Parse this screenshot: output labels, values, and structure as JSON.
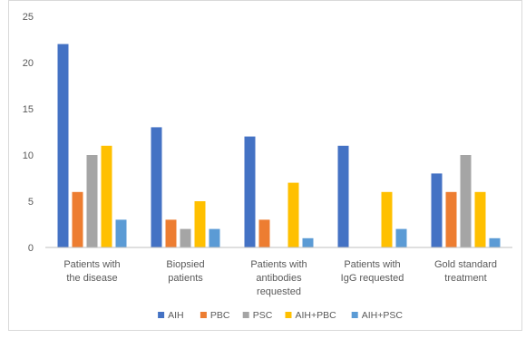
{
  "chart_data": {
    "type": "bar",
    "categories": [
      [
        "Patients with",
        "the disease"
      ],
      [
        "Biopsied",
        "patients"
      ],
      [
        "Patients with",
        "antibodies",
        "requested"
      ],
      [
        "Patients with",
        "IgG requested"
      ],
      [
        "Gold standard",
        "treatment"
      ]
    ],
    "series": [
      {
        "name": "AIH",
        "color": "#4472C4",
        "values": [
          22,
          13,
          12,
          11,
          8
        ]
      },
      {
        "name": "PBC",
        "color": "#ED7D31",
        "values": [
          6,
          3,
          3,
          0,
          6
        ]
      },
      {
        "name": "PSC",
        "color": "#A5A5A5",
        "values": [
          10,
          2,
          0,
          0,
          10
        ]
      },
      {
        "name": "AIH+PBC",
        "color": "#FFC000",
        "values": [
          11,
          5,
          7,
          6,
          6
        ]
      },
      {
        "name": "AIH+PSC",
        "color": "#5B9BD5",
        "values": [
          3,
          2,
          1,
          2,
          1
        ]
      }
    ],
    "ylim": [
      0,
      25
    ],
    "yticks": [
      0,
      5,
      10,
      15,
      20,
      25
    ],
    "title": "",
    "xlabel": "",
    "ylabel": "",
    "grid": false,
    "legend_position": "bottom"
  }
}
